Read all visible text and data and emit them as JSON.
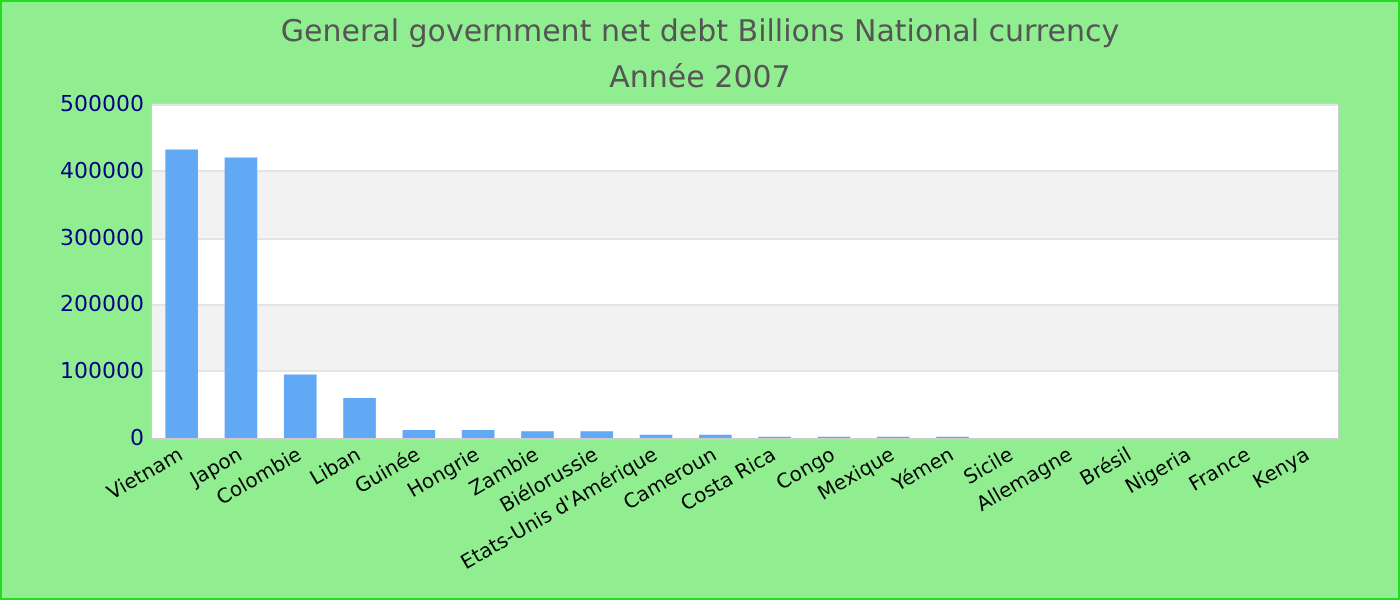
{
  "chart_data": {
    "type": "bar",
    "title": "General government net debt Billions National currency",
    "subtitle": "Année 2007",
    "categories": [
      "Vietnam",
      "Japon",
      "Colombie",
      "Liban",
      "Guinée",
      "Hongrie",
      "Zambie",
      "Biélorussie",
      "Etats-Unis d'Amérique",
      "Cameroun",
      "Costa Rica",
      "Congo",
      "Mexique",
      "Yémen",
      "Sicile",
      "Allemagne",
      "Brésil",
      "Nigeria",
      "France",
      "Kenya"
    ],
    "values": [
      432000,
      420000,
      95000,
      60000,
      12000,
      12000,
      10000,
      10000,
      5000,
      5000,
      2000,
      2000,
      2000,
      2000,
      null,
      null,
      null,
      null,
      null,
      null
    ],
    "color": "#62a9f5",
    "ylim": [
      0,
      500000
    ],
    "yticks": [
      0,
      100000,
      200000,
      300000,
      400000,
      500000
    ],
    "grid": "y"
  }
}
